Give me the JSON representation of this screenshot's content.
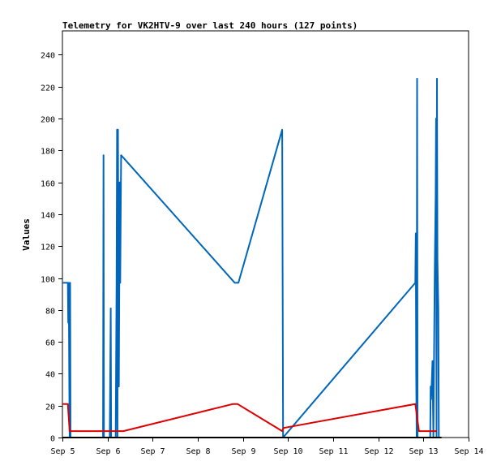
{
  "chart_data": {
    "type": "line",
    "title": "Telemetry for VK2HTV-9 over last 240 hours (127 points)",
    "xlabel": "",
    "ylabel": "Values",
    "x_unit": "day of September",
    "xlim": [
      5,
      14
    ],
    "ylim": [
      0,
      255
    ],
    "x_ticks": [
      5,
      6,
      7,
      8,
      9,
      10,
      11,
      12,
      13,
      14
    ],
    "x_tick_labels": [
      "Sep 5",
      "Sep 6",
      "Sep 7",
      "Sep 8",
      "Sep 9",
      "Sep 10",
      "Sep 11",
      "Sep 12",
      "Sep 13",
      "Sep 14"
    ],
    "y_ticks": [
      0,
      20,
      40,
      60,
      80,
      100,
      120,
      140,
      160,
      180,
      200,
      220,
      240
    ],
    "grid": false,
    "legend": "none",
    "series": [
      {
        "color": "#0066bb",
        "points": [
          [
            5.0,
            97
          ],
          [
            5.12,
            97
          ],
          [
            5.13,
            72
          ],
          [
            5.14,
            97
          ],
          [
            5.15,
            40
          ],
          [
            5.16,
            0
          ],
          [
            5.17,
            97
          ],
          [
            5.18,
            0
          ],
          [
            5.9,
            0
          ],
          [
            5.91,
            177
          ],
          [
            5.92,
            0
          ],
          [
            6.05,
            0
          ],
          [
            6.06,
            40
          ],
          [
            6.07,
            81
          ],
          [
            6.08,
            0
          ],
          [
            6.1,
            0
          ],
          [
            6.18,
            0
          ],
          [
            6.2,
            97
          ],
          [
            6.21,
            193
          ],
          [
            6.22,
            0
          ],
          [
            6.23,
            193
          ],
          [
            6.25,
            32
          ],
          [
            6.27,
            160
          ],
          [
            6.28,
            97
          ],
          [
            6.3,
            177
          ],
          [
            8.82,
            97
          ],
          [
            8.9,
            97
          ],
          [
            9.87,
            193
          ],
          [
            9.89,
            0
          ],
          [
            12.82,
            97
          ],
          [
            12.83,
            128
          ],
          [
            12.84,
            40
          ],
          [
            12.85,
            0
          ],
          [
            12.86,
            225
          ],
          [
            12.87,
            0
          ],
          [
            13.15,
            0
          ],
          [
            13.16,
            32
          ],
          [
            13.17,
            24
          ],
          [
            13.18,
            32
          ],
          [
            13.2,
            48
          ],
          [
            13.22,
            0
          ],
          [
            13.25,
            105
          ],
          [
            13.27,
            152
          ],
          [
            13.28,
            200
          ],
          [
            13.29,
            0
          ],
          [
            13.3,
            225
          ],
          [
            13.31,
            112
          ],
          [
            13.33,
            80
          ],
          [
            13.34,
            0
          ]
        ]
      },
      {
        "color": "#dd0000",
        "points": [
          [
            5.0,
            21
          ],
          [
            5.12,
            21
          ],
          [
            5.16,
            4
          ],
          [
            5.3,
            4
          ],
          [
            6.2,
            4
          ],
          [
            6.35,
            4
          ],
          [
            8.78,
            21
          ],
          [
            8.88,
            21
          ],
          [
            9.87,
            4
          ],
          [
            9.9,
            6
          ],
          [
            12.82,
            21
          ],
          [
            12.9,
            4
          ],
          [
            13.05,
            4
          ],
          [
            13.3,
            4
          ]
        ]
      },
      {
        "color": "#000000",
        "points": [
          [
            5.0,
            0
          ],
          [
            13.4,
            0
          ]
        ]
      }
    ]
  }
}
